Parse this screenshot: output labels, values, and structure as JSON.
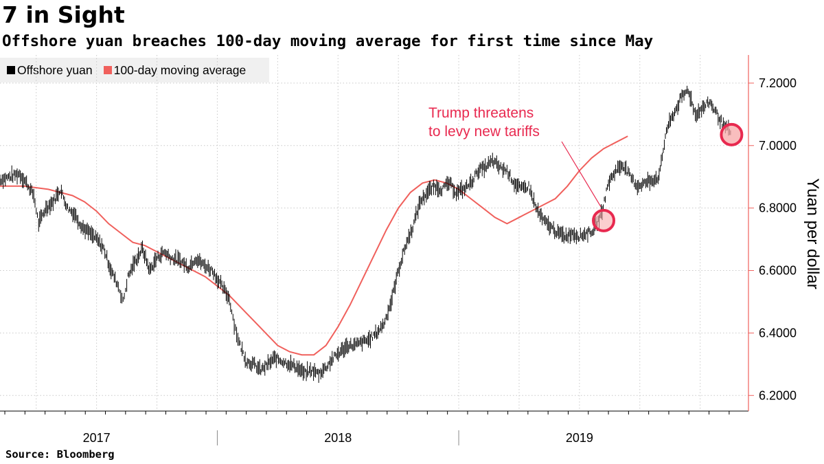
{
  "header": {
    "title": "7 in Sight",
    "subtitle": "Offshore yuan breaches 100-day moving average for first time since May"
  },
  "footer": {
    "source": "Source: Bloomberg"
  },
  "colors": {
    "yuan": "#000000",
    "moving_average": "#f0605c",
    "annotation": "#e8294f",
    "highlight_fill": "#f7a8a8",
    "grid": "#c8c8c8",
    "legend_bg": "#f0f0f0"
  },
  "chart_data": {
    "type": "line",
    "title": "7 in Sight",
    "subtitle": "Offshore yuan breaches 100-day moving average for first time since May",
    "ylabel": "Yuan per dollar",
    "xlabel": "",
    "ylim": [
      6.15,
      7.29
    ],
    "xlim": [
      2016.6,
      2019.7
    ],
    "y_ticks": [
      6.2,
      6.4,
      6.6,
      6.8,
      7.0,
      7.2
    ],
    "y_tick_labels": [
      "6.2000",
      "6.4000",
      "6.6000",
      "6.8000",
      "7.0000",
      "7.2000"
    ],
    "x_year_labels": [
      {
        "label": "2017",
        "t": 2017.0
      },
      {
        "label": "2018",
        "t": 2018.0
      },
      {
        "label": "2019",
        "t": 2019.0
      }
    ],
    "x_year_boundaries": [
      2017.5,
      2018.5
    ],
    "grid": true,
    "legend_position": "top-left",
    "legend": [
      "Offshore yuan",
      "100-day moving average"
    ],
    "series": [
      {
        "name": "Offshore yuan",
        "style": "ohlc-bars",
        "points": [
          [
            2016.6,
            6.89
          ],
          [
            2016.64,
            6.9
          ],
          [
            2016.68,
            6.91
          ],
          [
            2016.71,
            6.88
          ],
          [
            2016.74,
            6.84
          ],
          [
            2016.76,
            6.75
          ],
          [
            2016.79,
            6.8
          ],
          [
            2016.82,
            6.82
          ],
          [
            2016.85,
            6.86
          ],
          [
            2016.88,
            6.8
          ],
          [
            2016.91,
            6.78
          ],
          [
            2016.94,
            6.74
          ],
          [
            2016.97,
            6.72
          ],
          [
            2017.0,
            6.7
          ],
          [
            2017.03,
            6.67
          ],
          [
            2017.06,
            6.6
          ],
          [
            2017.09,
            6.55
          ],
          [
            2017.11,
            6.5
          ],
          [
            2017.13,
            6.58
          ],
          [
            2017.16,
            6.63
          ],
          [
            2017.19,
            6.67
          ],
          [
            2017.22,
            6.6
          ],
          [
            2017.25,
            6.64
          ],
          [
            2017.28,
            6.66
          ],
          [
            2017.31,
            6.64
          ],
          [
            2017.35,
            6.63
          ],
          [
            2017.38,
            6.61
          ],
          [
            2017.41,
            6.64
          ],
          [
            2017.44,
            6.62
          ],
          [
            2017.48,
            6.6
          ],
          [
            2017.51,
            6.56
          ],
          [
            2017.55,
            6.51
          ],
          [
            2017.57,
            6.43
          ],
          [
            2017.59,
            6.37
          ],
          [
            2017.62,
            6.31
          ],
          [
            2017.65,
            6.3
          ],
          [
            2017.68,
            6.28
          ],
          [
            2017.71,
            6.3
          ],
          [
            2017.74,
            6.32
          ],
          [
            2017.77,
            6.31
          ],
          [
            2017.8,
            6.3
          ],
          [
            2017.83,
            6.29
          ],
          [
            2017.86,
            6.27
          ],
          [
            2017.89,
            6.28
          ],
          [
            2017.92,
            6.27
          ],
          [
            2017.95,
            6.29
          ],
          [
            2017.98,
            6.32
          ],
          [
            2018.01,
            6.34
          ],
          [
            2018.04,
            6.36
          ],
          [
            2018.07,
            6.36
          ],
          [
            2018.1,
            6.37
          ],
          [
            2018.13,
            6.38
          ],
          [
            2018.16,
            6.4
          ],
          [
            2018.19,
            6.43
          ],
          [
            2018.22,
            6.5
          ],
          [
            2018.25,
            6.6
          ],
          [
            2018.28,
            6.68
          ],
          [
            2018.31,
            6.74
          ],
          [
            2018.34,
            6.82
          ],
          [
            2018.37,
            6.85
          ],
          [
            2018.4,
            6.87
          ],
          [
            2018.43,
            6.86
          ],
          [
            2018.46,
            6.88
          ],
          [
            2018.49,
            6.85
          ],
          [
            2018.52,
            6.86
          ],
          [
            2018.55,
            6.88
          ],
          [
            2018.58,
            6.92
          ],
          [
            2018.61,
            6.93
          ],
          [
            2018.64,
            6.95
          ],
          [
            2018.67,
            6.93
          ],
          [
            2018.7,
            6.92
          ],
          [
            2018.73,
            6.88
          ],
          [
            2018.76,
            6.86
          ],
          [
            2018.79,
            6.87
          ],
          [
            2018.82,
            6.8
          ],
          [
            2018.85,
            6.76
          ],
          [
            2018.88,
            6.74
          ],
          [
            2018.91,
            6.72
          ],
          [
            2018.94,
            6.71
          ],
          [
            2018.97,
            6.72
          ],
          [
            2019.0,
            6.71
          ],
          [
            2019.03,
            6.72
          ],
          [
            2019.06,
            6.73
          ],
          [
            2019.09,
            6.78
          ],
          [
            2019.12,
            6.88
          ],
          [
            2019.15,
            6.92
          ],
          [
            2019.18,
            6.94
          ],
          [
            2019.21,
            6.9
          ],
          [
            2019.24,
            6.87
          ],
          [
            2019.27,
            6.88
          ],
          [
            2019.3,
            6.89
          ],
          [
            2019.33,
            6.9
          ],
          [
            2019.36,
            7.05
          ],
          [
            2019.39,
            7.1
          ],
          [
            2019.42,
            7.15
          ],
          [
            2019.45,
            7.18
          ],
          [
            2019.48,
            7.1
          ],
          [
            2019.51,
            7.12
          ],
          [
            2019.54,
            7.14
          ],
          [
            2019.57,
            7.1
          ],
          [
            2019.6,
            7.06
          ],
          [
            2019.63,
            7.04
          ]
        ]
      },
      {
        "name": "100-day moving average",
        "style": "line",
        "points": [
          [
            2016.6,
            6.87
          ],
          [
            2016.7,
            6.87
          ],
          [
            2016.8,
            6.86
          ],
          [
            2016.9,
            6.84
          ],
          [
            2016.95,
            6.82
          ],
          [
            2017.0,
            6.79
          ],
          [
            2017.05,
            6.75
          ],
          [
            2017.1,
            6.72
          ],
          [
            2017.15,
            6.69
          ],
          [
            2017.2,
            6.68
          ],
          [
            2017.25,
            6.66
          ],
          [
            2017.3,
            6.64
          ],
          [
            2017.35,
            6.62
          ],
          [
            2017.4,
            6.6
          ],
          [
            2017.45,
            6.58
          ],
          [
            2017.5,
            6.55
          ],
          [
            2017.55,
            6.52
          ],
          [
            2017.6,
            6.48
          ],
          [
            2017.65,
            6.44
          ],
          [
            2017.7,
            6.4
          ],
          [
            2017.75,
            6.36
          ],
          [
            2017.8,
            6.34
          ],
          [
            2017.85,
            6.33
          ],
          [
            2017.9,
            6.33
          ],
          [
            2017.95,
            6.36
          ],
          [
            2018.0,
            6.42
          ],
          [
            2018.05,
            6.49
          ],
          [
            2018.1,
            6.57
          ],
          [
            2018.15,
            6.65
          ],
          [
            2018.2,
            6.73
          ],
          [
            2018.25,
            6.8
          ],
          [
            2018.3,
            6.85
          ],
          [
            2018.35,
            6.88
          ],
          [
            2018.4,
            6.89
          ],
          [
            2018.45,
            6.88
          ],
          [
            2018.5,
            6.86
          ],
          [
            2018.55,
            6.83
          ],
          [
            2018.6,
            6.8
          ],
          [
            2018.65,
            6.77
          ],
          [
            2018.7,
            6.75
          ],
          [
            2018.75,
            6.77
          ],
          [
            2018.8,
            6.79
          ],
          [
            2018.85,
            6.81
          ],
          [
            2018.9,
            6.83
          ],
          [
            2018.95,
            6.87
          ],
          [
            2019.0,
            6.92
          ],
          [
            2019.05,
            6.96
          ],
          [
            2019.1,
            6.99
          ],
          [
            2019.15,
            7.01
          ],
          [
            2019.2,
            7.03
          ]
        ]
      }
    ],
    "annotations": [
      {
        "text": "Trump threatens",
        "text2": "to levy new tariffs"
      }
    ]
  }
}
